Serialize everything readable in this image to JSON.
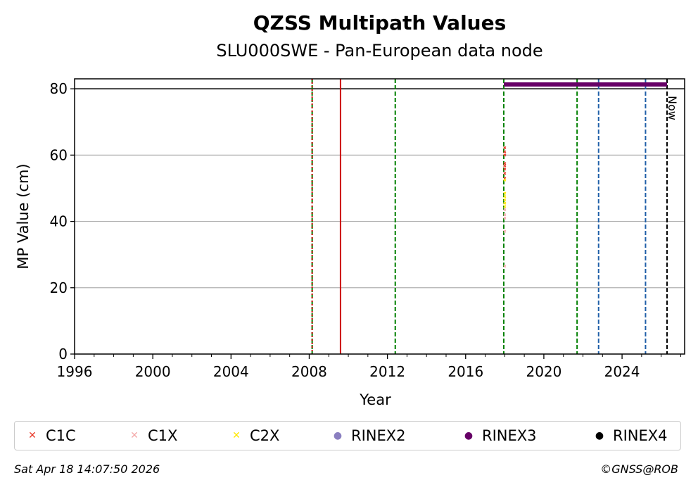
{
  "chart_data": {
    "type": "scatter",
    "title": "QZSS Multipath Values",
    "subtitle": "SLU000SWE - Pan-European data node",
    "xlabel": "Year",
    "ylabel": "MP Value (cm)",
    "xlim": [
      1996,
      2027.2
    ],
    "ylim": [
      0,
      83
    ],
    "x_ticks": [
      1996,
      2000,
      2004,
      2008,
      2012,
      2016,
      2020,
      2024
    ],
    "y_ticks": [
      0,
      20,
      40,
      60,
      80
    ],
    "grid": "y",
    "threshold_line": 80,
    "vertical_lines": [
      {
        "x": 2008.15,
        "color": "#008000",
        "style": "dashed"
      },
      {
        "x": 2008.15,
        "color": "#cc0000",
        "style": "dotted"
      },
      {
        "x": 2009.6,
        "color": "#cc0000",
        "style": "solid"
      },
      {
        "x": 2012.4,
        "color": "#008000",
        "style": "dashed"
      },
      {
        "x": 2017.95,
        "color": "#008000",
        "style": "dashed"
      },
      {
        "x": 2021.7,
        "color": "#008000",
        "style": "dashed"
      },
      {
        "x": 2022.8,
        "color": "#1f5fa8",
        "style": "dashed"
      },
      {
        "x": 2025.2,
        "color": "#1f5fa8",
        "style": "dashed"
      },
      {
        "x": 2026.3,
        "color": "#000000",
        "style": "dashed"
      }
    ],
    "now_label": "Now",
    "series": [
      {
        "name": "C1C",
        "color": "#e8392a",
        "marker": "x",
        "points": [
          [
            2018.0,
            62.2
          ],
          [
            2018.0,
            61.0
          ],
          [
            2018.0,
            60.0
          ],
          [
            2018.0,
            57.5
          ],
          [
            2018.0,
            56.8
          ],
          [
            2018.0,
            55.8
          ],
          [
            2018.0,
            54.5
          ],
          [
            2018.0,
            53.0
          ]
        ]
      },
      {
        "name": "C1X",
        "color": "#f4aaaa",
        "marker": "x",
        "points": [
          [
            2018.0,
            43.5
          ],
          [
            2018.0,
            42.0
          ],
          [
            2018.0,
            41.0
          ],
          [
            2018.0,
            37.0
          ],
          [
            2018.0,
            26.5
          ]
        ]
      },
      {
        "name": "C2X",
        "color": "#ffe800",
        "marker": "x",
        "points": [
          [
            2018.0,
            48.5
          ],
          [
            2018.0,
            47.5
          ],
          [
            2018.0,
            46.5
          ],
          [
            2018.0,
            45.5
          ],
          [
            2018.0,
            44.5
          ],
          [
            2018.0,
            52.5
          ]
        ]
      },
      {
        "name": "RINEX2",
        "color": "#8a7fc0",
        "marker": "dot",
        "points": []
      },
      {
        "name": "RINEX3",
        "color": "#660066",
        "marker": "dot",
        "bar": {
          "x_start": 2017.95,
          "x_end": 2026.3,
          "y": 81.3
        }
      },
      {
        "name": "RINEX4",
        "color": "#000000",
        "marker": "dot",
        "points": []
      }
    ]
  },
  "footer": {
    "timestamp": "Sat Apr 18 14:07:50 2026",
    "credit": "©GNSS@ROB"
  }
}
